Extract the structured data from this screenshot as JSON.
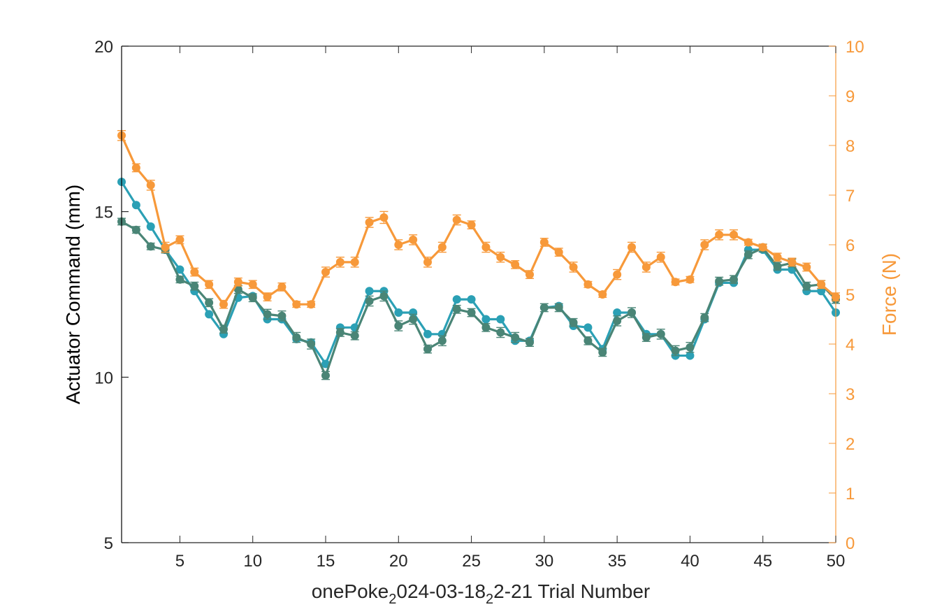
{
  "chart_data": {
    "type": "line",
    "title": "",
    "xlabel": "onePoke_2024-03-18_2-21 Trial Number",
    "xlabel_parts": [
      "onePoke",
      "2",
      "024-03-18",
      "2",
      "2-21 Trial Number"
    ],
    "ylabel_left": "Actuator Command (mm)",
    "ylabel_right": "Force (N)",
    "xlim": [
      1,
      50
    ],
    "ylim_left": [
      5,
      20
    ],
    "ylim_right": [
      0,
      10
    ],
    "x_ticks": [
      5,
      10,
      15,
      20,
      25,
      30,
      35,
      40,
      45,
      50
    ],
    "y_left_ticks": [
      5,
      10,
      15,
      20
    ],
    "y_right_ticks": [
      0,
      1,
      2,
      3,
      4,
      5,
      6,
      7,
      8,
      9,
      10
    ],
    "grid": false,
    "x": [
      1,
      2,
      3,
      4,
      5,
      6,
      7,
      8,
      9,
      10,
      11,
      12,
      13,
      14,
      15,
      16,
      17,
      18,
      19,
      20,
      21,
      22,
      23,
      24,
      25,
      26,
      27,
      28,
      29,
      30,
      31,
      32,
      33,
      34,
      35,
      36,
      37,
      38,
      39,
      40,
      41,
      42,
      43,
      44,
      45,
      46,
      47,
      48,
      49,
      50
    ],
    "series": [
      {
        "axis": "left",
        "color": "#2ba0b5",
        "values": [
          15.9,
          15.2,
          14.55,
          13.85,
          13.25,
          12.6,
          11.9,
          11.3,
          12.4,
          12.45,
          11.75,
          11.75,
          11.15,
          11.05,
          10.4,
          11.5,
          11.5,
          12.6,
          12.6,
          11.95,
          11.95,
          11.3,
          11.3,
          12.35,
          12.35,
          11.75,
          11.75,
          11.1,
          11.1,
          12.1,
          12.15,
          11.55,
          11.5,
          10.85,
          11.95,
          11.95,
          11.3,
          11.3,
          10.65,
          10.65,
          11.75,
          12.85,
          12.85,
          13.85,
          13.85,
          13.25,
          13.25,
          12.6,
          12.6,
          11.95
        ],
        "errors": [
          0,
          0,
          0,
          0,
          0,
          0,
          0,
          0,
          0,
          0,
          0,
          0,
          0,
          0,
          0,
          0,
          0,
          0,
          0,
          0,
          0,
          0,
          0,
          0,
          0,
          0,
          0,
          0,
          0,
          0,
          0,
          0,
          0,
          0,
          0,
          0,
          0,
          0,
          0,
          0,
          0,
          0,
          0,
          0,
          0,
          0,
          0,
          0,
          0,
          0
        ]
      },
      {
        "axis": "left",
        "color": "#4a8576",
        "values": [
          14.7,
          14.45,
          13.95,
          13.85,
          12.95,
          12.75,
          12.25,
          11.45,
          12.65,
          12.4,
          11.9,
          11.85,
          11.2,
          11.0,
          10.05,
          11.35,
          11.25,
          12.3,
          12.45,
          11.55,
          11.75,
          10.85,
          11.1,
          12.05,
          11.95,
          11.5,
          11.35,
          11.2,
          11.05,
          12.1,
          12.1,
          11.65,
          11.1,
          10.75,
          11.7,
          11.95,
          11.2,
          11.3,
          10.8,
          10.9,
          11.8,
          12.9,
          12.95,
          13.7,
          13.9,
          13.35,
          13.45,
          12.75,
          12.8,
          12.35
        ],
        "errors": [
          0.1,
          0.1,
          0.1,
          0.1,
          0.1,
          0.12,
          0.12,
          0.12,
          0.12,
          0.12,
          0.15,
          0.15,
          0.15,
          0.15,
          0.12,
          0.12,
          0.12,
          0.15,
          0.15,
          0.15,
          0.15,
          0.12,
          0.15,
          0.12,
          0.12,
          0.12,
          0.15,
          0.15,
          0.12,
          0.12,
          0.12,
          0.12,
          0.12,
          0.12,
          0.15,
          0.15,
          0.12,
          0.15,
          0.15,
          0.15,
          0.12,
          0.12,
          0.12,
          0.12,
          0.12,
          0.12,
          0.12,
          0.12,
          0.12,
          0.12
        ]
      },
      {
        "axis": "right",
        "color": "#f7993a",
        "values": [
          8.2,
          7.55,
          7.2,
          5.95,
          6.1,
          5.45,
          5.2,
          4.8,
          5.25,
          5.2,
          4.95,
          5.15,
          4.8,
          4.8,
          5.45,
          5.65,
          5.65,
          6.45,
          6.55,
          6.0,
          6.1,
          5.65,
          5.95,
          6.5,
          6.4,
          5.95,
          5.75,
          5.6,
          5.4,
          6.05,
          5.85,
          5.55,
          5.2,
          5.0,
          5.4,
          5.95,
          5.55,
          5.75,
          5.25,
          5.3,
          6.0,
          6.2,
          6.2,
          6.05,
          5.95,
          5.75,
          5.65,
          5.55,
          5.2,
          4.95
        ],
        "errors": [
          0.1,
          0.08,
          0.1,
          0.1,
          0.08,
          0.08,
          0.08,
          0.08,
          0.08,
          0.08,
          0.08,
          0.08,
          0.06,
          0.06,
          0.1,
          0.1,
          0.1,
          0.1,
          0.12,
          0.1,
          0.1,
          0.1,
          0.1,
          0.1,
          0.08,
          0.1,
          0.1,
          0.08,
          0.08,
          0.08,
          0.08,
          0.1,
          0.06,
          0.06,
          0.1,
          0.1,
          0.1,
          0.1,
          0.06,
          0.06,
          0.1,
          0.1,
          0.1,
          0.06,
          0.06,
          0.08,
          0.08,
          0.08,
          0.08,
          0.08
        ]
      }
    ]
  },
  "colors": {
    "left_axis": "#000000",
    "right_axis": "#f7993a"
  }
}
